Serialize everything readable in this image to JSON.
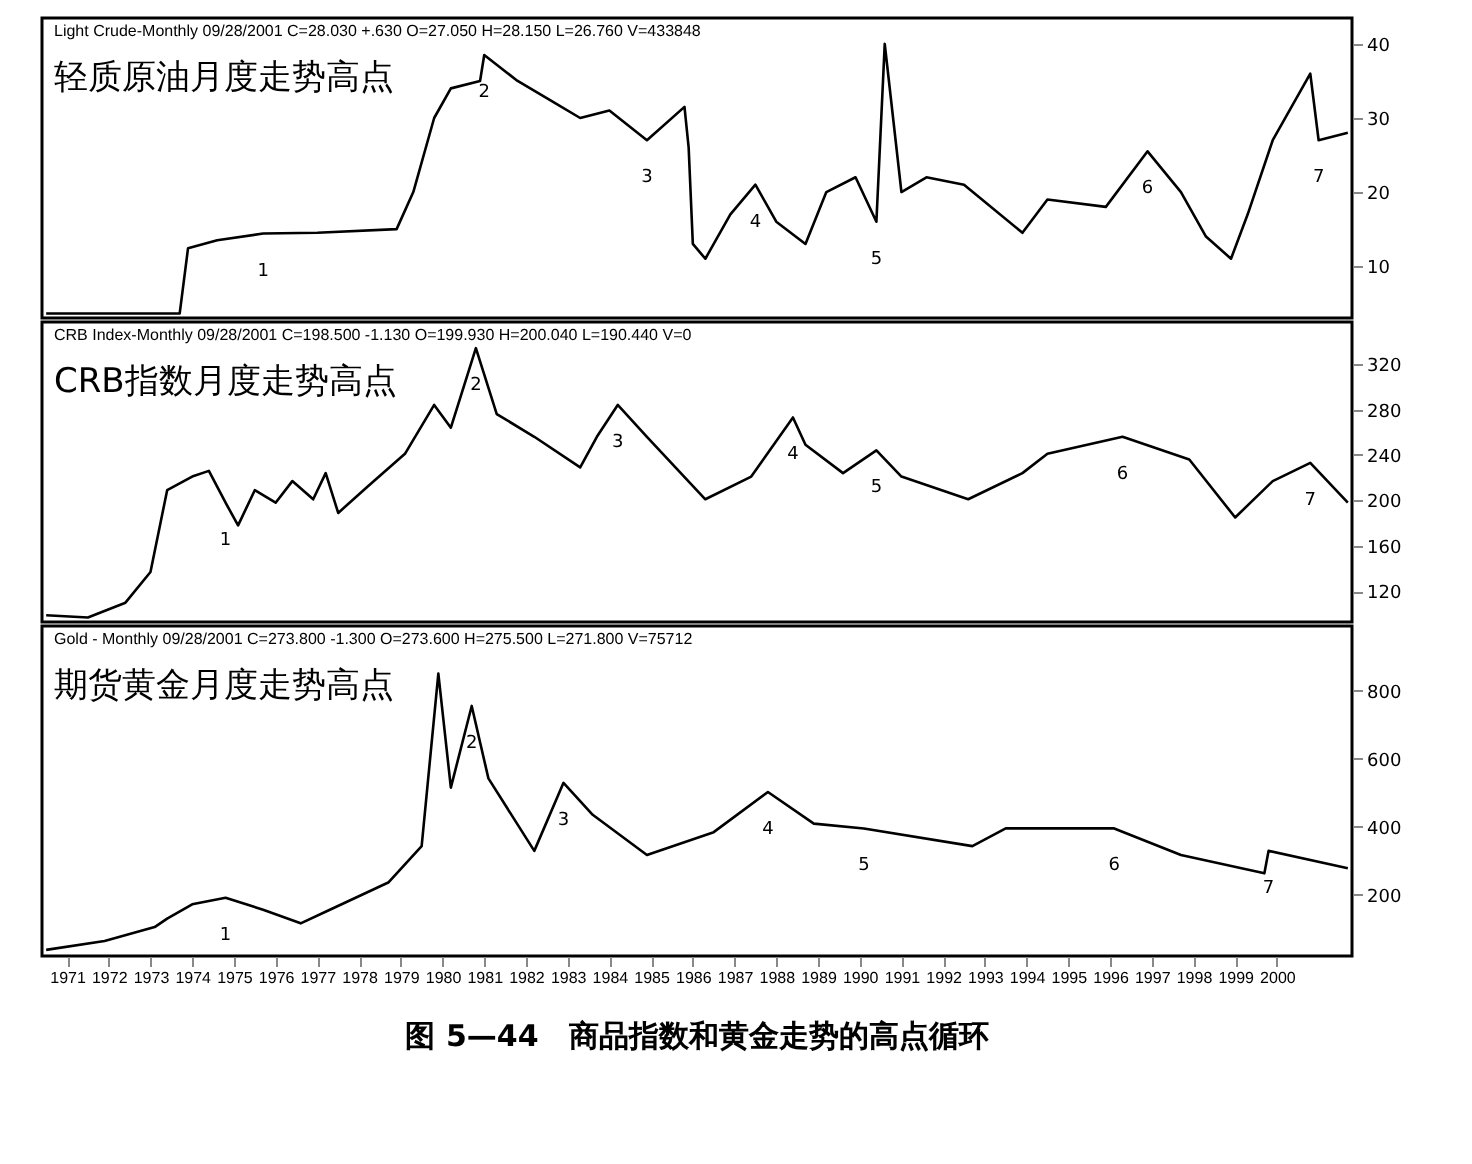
{
  "chart_data": [
    {
      "type": "line",
      "title": "轻质原油月度走势高点",
      "subtitle": "Light Crude-Monthly 09/28/2001 C=28.030 +.630 O=27.050 H=28.150 L=26.760 V=433848",
      "x": [
        1970.5,
        1973.7,
        1973.9,
        1974.6,
        1975.7,
        1977.0,
        1978.9,
        1979.3,
        1979.8,
        1980.2,
        1980.9,
        1981.0,
        1981.8,
        1982.7,
        1983.3,
        1984.0,
        1984.9,
        1985.8,
        1985.9,
        1986.0,
        1986.3,
        1986.9,
        1987.5,
        1988.0,
        1988.7,
        1989.2,
        1989.9,
        1990.4,
        1990.6,
        1990.8,
        1991.0,
        1991.6,
        1992.5,
        1993.9,
        1994.5,
        1995.9,
        1996.9,
        1997.7,
        1998.3,
        1998.9,
        1999.3,
        1999.9,
        2000.8,
        2001.0,
        2001.7
      ],
      "series": [
        {
          "color": "#000000",
          "values": [
            3.6,
            3.6,
            12.4,
            13.5,
            14.4,
            14.5,
            15,
            20,
            30,
            34,
            35,
            38.5,
            35,
            32,
            30,
            31,
            27,
            31.5,
            26,
            13,
            11,
            17,
            21,
            16,
            13,
            20,
            22,
            16,
            40,
            30,
            20,
            22,
            21,
            14.5,
            19,
            18,
            25.5,
            20,
            14,
            11,
            17,
            27,
            36,
            27,
            28
          ]
        }
      ],
      "xlim": [
        1970.4,
        2001.8
      ],
      "ylim": [
        3,
        43.5
      ],
      "yticks": [
        10,
        20,
        30,
        40
      ],
      "tick_labels": "y",
      "grid": false,
      "marker": "none",
      "annotations": [
        {
          "text": "1",
          "x": 1975.7,
          "y": 14.4
        },
        {
          "text": "2",
          "x": 1981.0,
          "y": 38.5
        },
        {
          "text": "3",
          "x": 1984.9,
          "y": 27
        },
        {
          "text": "4",
          "x": 1987.5,
          "y": 21
        },
        {
          "text": "5",
          "x": 1990.4,
          "y": 16
        },
        {
          "text": "6",
          "x": 1996.9,
          "y": 25.5
        },
        {
          "text": "7",
          "x": 2001.0,
          "y": 27
        }
      ]
    },
    {
      "type": "line",
      "title": "CRB指数月度走势高点",
      "subtitle": "CRB Index-Monthly 09/28/2001 C=198.500 -1.130 O=199.930 H=200.040 L=190.440 V=0",
      "x": [
        1970.5,
        1971.5,
        1972.4,
        1973.0,
        1973.4,
        1974.0,
        1974.4,
        1974.8,
        1975.1,
        1975.5,
        1976.0,
        1976.4,
        1976.9,
        1977.2,
        1977.5,
        1978.2,
        1979.1,
        1979.8,
        1980.2,
        1980.8,
        1981.3,
        1982.2,
        1983.3,
        1983.7,
        1984.2,
        1984.9,
        1986.3,
        1987.4,
        1988.4,
        1988.7,
        1989.6,
        1990.4,
        1991.0,
        1992.6,
        1993.9,
        1994.5,
        1996.3,
        1997.9,
        1999.0,
        1999.9,
        2000.8,
        2001.7
      ],
      "series": [
        {
          "color": "#000000",
          "values": [
            99,
            97,
            110,
            137,
            209,
            221,
            226,
            198,
            178,
            209,
            198,
            217,
            201,
            224,
            189,
            212,
            241,
            284,
            264,
            334,
            276,
            256,
            229,
            256,
            284,
            256,
            201,
            221,
            273,
            249,
            224,
            244,
            221,
            201,
            224,
            241,
            256,
            236,
            185,
            217,
            233,
            198
          ]
        }
      ],
      "xlim": [
        1970.4,
        2001.8
      ],
      "ylim": [
        93,
        357
      ],
      "yticks": [
        120,
        160,
        200,
        240,
        280,
        320
      ],
      "tick_labels": "y",
      "grid": false,
      "marker": "none",
      "annotations": [
        {
          "text": "1",
          "x": 1974.8,
          "y": 198
        },
        {
          "text": "2",
          "x": 1980.8,
          "y": 334
        },
        {
          "text": "3",
          "x": 1984.2,
          "y": 284
        },
        {
          "text": "4",
          "x": 1988.4,
          "y": 273
        },
        {
          "text": "5",
          "x": 1990.4,
          "y": 244
        },
        {
          "text": "6",
          "x": 1996.3,
          "y": 256
        },
        {
          "text": "7",
          "x": 2000.8,
          "y": 233
        }
      ]
    },
    {
      "type": "line",
      "title": "期货黄金月度走势高点",
      "subtitle": "Gold - Monthly 09/28/2001 C=273.800 -1.300 O=273.600 H=275.500 L=271.800 V=75712",
      "x": [
        1970.5,
        1971.9,
        1973.1,
        1973.4,
        1974.0,
        1974.8,
        1975.7,
        1976.6,
        1977.3,
        1978.7,
        1979.5,
        1979.9,
        1980.2,
        1980.7,
        1981.1,
        1982.2,
        1982.9,
        1983.6,
        1984.9,
        1986.5,
        1987.8,
        1988.9,
        1990.1,
        1992.7,
        1993.5,
        1996.1,
        1997.7,
        1999.7,
        1999.8,
        2001.7
      ],
      "series": [
        {
          "color": "#000000",
          "values": [
            38,
            64,
            105,
            130,
            172,
            191,
            156,
            116,
            156,
            236,
            343,
            850,
            515,
            755,
            542,
            329,
            529,
            435,
            317,
            384,
            502,
            409,
            395,
            343,
            395,
            395,
            317,
            263,
            329,
            278
          ]
        }
      ],
      "xlim": [
        1970.4,
        2001.8
      ],
      "ylim": [
        20,
        990
      ],
      "yticks": [
        200,
        400,
        600,
        800
      ],
      "xticks": [
        1971,
        1972,
        1973,
        1974,
        1975,
        1976,
        1977,
        1978,
        1979,
        1980,
        1981,
        1982,
        1983,
        1984,
        1985,
        1986,
        1987,
        1988,
        1989,
        1990,
        1991,
        1992,
        1993,
        1994,
        1995,
        1996,
        1997,
        1998,
        1999,
        2000
      ],
      "grid": false,
      "marker": "none",
      "annotations": [
        {
          "text": "1",
          "x": 1974.8,
          "y": 191
        },
        {
          "text": "2",
          "x": 1980.7,
          "y": 755
        },
        {
          "text": "3",
          "x": 1982.9,
          "y": 529
        },
        {
          "text": "4",
          "x": 1987.8,
          "y": 502
        },
        {
          "text": "5",
          "x": 1990.1,
          "y": 395
        },
        {
          "text": "6",
          "x": 1996.1,
          "y": 395
        },
        {
          "text": "7",
          "x": 1999.8,
          "y": 329
        },
        "图 5—44　商品指数和黄金走势的高点循环"
      ]
    }
  ]
}
